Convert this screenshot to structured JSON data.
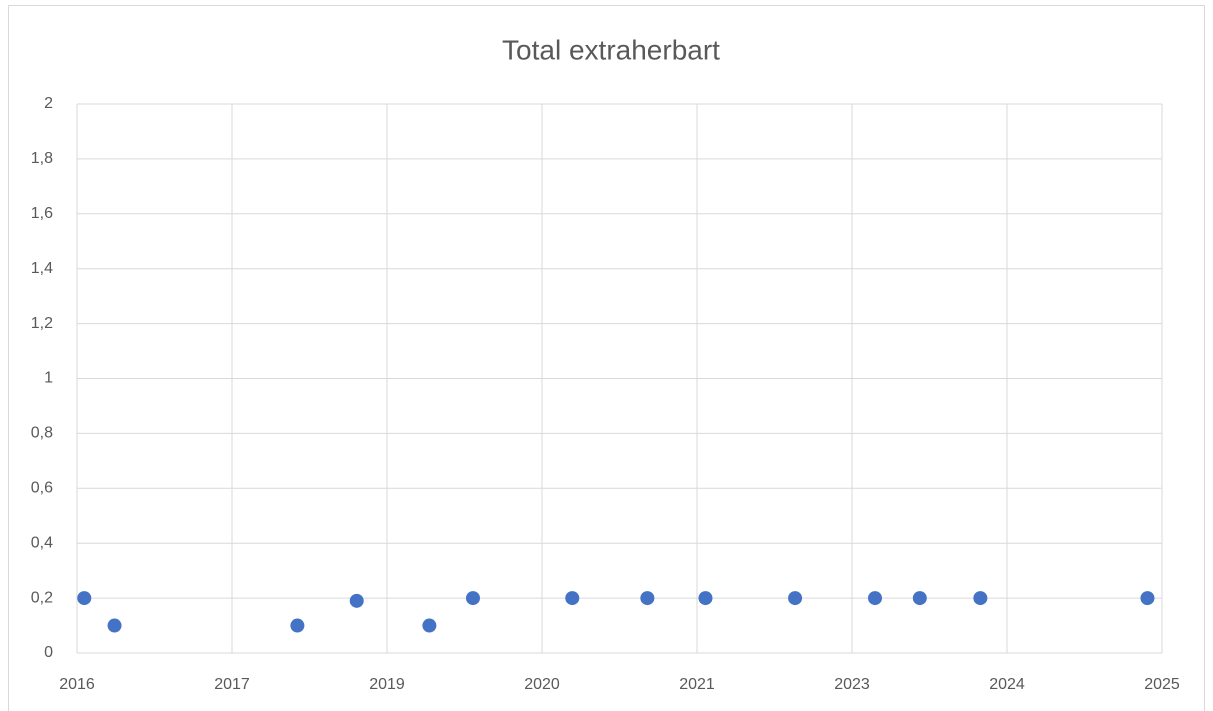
{
  "chart_data": {
    "type": "scatter",
    "title": "Total extraherbart",
    "series": [
      {
        "color": "#4472c4",
        "x": [
          2016.66,
          2016.91,
          2018.42,
          2018.91,
          2019.51,
          2019.87,
          2020.69,
          2021.31,
          2021.79,
          2022.53,
          2023.19,
          2023.56,
          2024.06,
          2025.44
        ],
        "values": [
          0.2,
          0.1,
          0.1,
          0.19,
          0.1,
          0.2,
          0.2,
          0.2,
          0.2,
          0.2,
          0.2,
          0.2,
          0.2,
          0.2
        ]
      }
    ],
    "xlim": [
      2016.6,
      2025.56
    ],
    "xticks": [
      {
        "value": 2016.6,
        "label": "2016"
      },
      {
        "value": 2017.88,
        "label": "2017"
      },
      {
        "value": 2019.16,
        "label": "2019"
      },
      {
        "value": 2020.44,
        "label": "2020"
      },
      {
        "value": 2021.72,
        "label": "2021"
      },
      {
        "value": 2023.0,
        "label": "2023"
      },
      {
        "value": 2024.28,
        "label": "2024"
      },
      {
        "value": 2025.56,
        "label": "2025"
      }
    ],
    "ylim": [
      0,
      2
    ],
    "yticks": [
      0,
      {
        "value": 0.2,
        "label": "0,2"
      },
      {
        "value": 0.4,
        "label": "0,4"
      },
      {
        "value": 0.6,
        "label": "0,6"
      },
      {
        "value": 0.8,
        "label": "0,8"
      },
      1,
      {
        "value": 1.2,
        "label": "1,2"
      },
      {
        "value": 1.4,
        "label": "1,4"
      },
      {
        "value": 1.6,
        "label": "1,6"
      },
      {
        "value": 1.8,
        "label": "1,8"
      },
      2
    ],
    "grid": true
  }
}
